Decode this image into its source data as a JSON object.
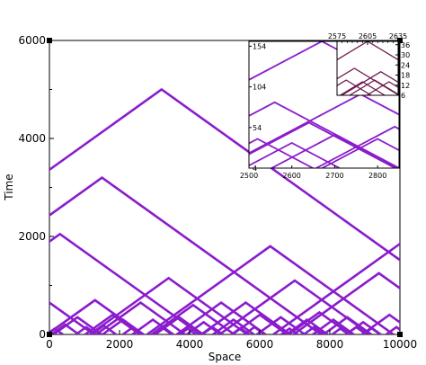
{
  "chart_data": [
    {
      "id": "main",
      "type": "line",
      "description_free": true,
      "xlabel": "Space",
      "ylabel": "Time",
      "xlim": [
        0,
        10000
      ],
      "ylim": [
        0,
        6000
      ],
      "x_ticks": [
        0,
        2000,
        4000,
        6000,
        8000,
        10000
      ],
      "y_ticks": [
        0,
        2000,
        4000,
        6000
      ],
      "x_tick_labels": [
        "0",
        "2000",
        "4000",
        "6000",
        "8000",
        "10000"
      ],
      "y_tick_labels": [
        "0",
        "2000",
        "4000",
        "6000"
      ],
      "color": "#8a1ccc",
      "major_peaks": [
        {
          "x": 3200,
          "t": 5000
        },
        {
          "x": 1500,
          "t": 3200
        },
        {
          "x": 300,
          "t": 2050
        },
        {
          "x": 6300,
          "t": 1800
        },
        {
          "x": 10000,
          "t": 1850
        },
        {
          "x": 3400,
          "t": 1150
        },
        {
          "x": 9400,
          "t": 1250
        },
        {
          "x": 7000,
          "t": 1100
        },
        {
          "x": 0,
          "t": 650
        },
        {
          "x": 1300,
          "t": 700
        },
        {
          "x": 2600,
          "t": 650
        },
        {
          "x": 4100,
          "t": 600
        },
        {
          "x": 4900,
          "t": 650
        },
        {
          "x": 5600,
          "t": 650
        },
        {
          "x": 7700,
          "t": 450
        }
      ],
      "minor_peaks": [
        {
          "x": 450,
          "t": 200
        },
        {
          "x": 800,
          "t": 350
        },
        {
          "x": 1800,
          "t": 400
        },
        {
          "x": 2100,
          "t": 300
        },
        {
          "x": 2950,
          "t": 300
        },
        {
          "x": 3700,
          "t": 350
        },
        {
          "x": 4400,
          "t": 250
        },
        {
          "x": 5250,
          "t": 300
        },
        {
          "x": 6000,
          "t": 400
        },
        {
          "x": 6600,
          "t": 350
        },
        {
          "x": 7350,
          "t": 300
        },
        {
          "x": 8100,
          "t": 300
        },
        {
          "x": 8500,
          "t": 350
        },
        {
          "x": 8950,
          "t": 250
        },
        {
          "x": 9700,
          "t": 400
        },
        {
          "x": 150,
          "t": 120
        },
        {
          "x": 1050,
          "t": 150
        },
        {
          "x": 1550,
          "t": 180
        },
        {
          "x": 2350,
          "t": 130
        },
        {
          "x": 3200,
          "t": 150
        },
        {
          "x": 3950,
          "t": 120
        },
        {
          "x": 4650,
          "t": 150
        },
        {
          "x": 5450,
          "t": 130
        },
        {
          "x": 5850,
          "t": 150
        },
        {
          "x": 6850,
          "t": 120
        },
        {
          "x": 7550,
          "t": 150
        },
        {
          "x": 8300,
          "t": 120
        },
        {
          "x": 8750,
          "t": 150
        },
        {
          "x": 9200,
          "t": 130
        },
        {
          "x": 9900,
          "t": 150
        }
      ]
    },
    {
      "id": "inset1",
      "type": "line",
      "xlim": [
        2500,
        2850
      ],
      "ylim": [
        4,
        160
      ],
      "x_ticks": [
        2500,
        2600,
        2700,
        2800
      ],
      "y_ticks": [
        4,
        54,
        104,
        154
      ],
      "x_tick_labels": [
        "2500",
        "2600",
        "2700",
        "2800"
      ],
      "y_tick_labels": [
        "4",
        "54",
        "104",
        "154"
      ],
      "color": "#8a1ccc",
      "major_peaks": [
        {
          "x": 2670,
          "t": 160
        },
        {
          "x": 2560,
          "t": 85
        },
        {
          "x": 2760,
          "t": 95
        },
        {
          "x": 2640,
          "t": 60
        },
        {
          "x": 2840,
          "t": 55
        },
        {
          "x": 2520,
          "t": 40
        },
        {
          "x": 2700,
          "t": 45
        },
        {
          "x": 2600,
          "t": 35
        },
        {
          "x": 2800,
          "t": 40
        }
      ]
    },
    {
      "id": "inset2",
      "type": "line",
      "xlim": [
        2575,
        2635
      ],
      "ylim": [
        6,
        38
      ],
      "x_ticks": [
        2575,
        2605,
        2635
      ],
      "y_ticks": [
        6,
        12,
        18,
        24,
        30,
        36
      ],
      "x_tick_labels": [
        "2575",
        "2605",
        "2635"
      ],
      "y_tick_labels": [
        "6",
        "12",
        "18",
        "24",
        "30",
        "36"
      ],
      "color": "#6e1a50",
      "major_peaks": [
        {
          "x": 2605,
          "t": 38
        },
        {
          "x": 2592,
          "t": 22
        },
        {
          "x": 2618,
          "t": 20
        },
        {
          "x": 2584,
          "t": 15
        },
        {
          "x": 2600,
          "t": 14
        },
        {
          "x": 2612,
          "t": 15
        },
        {
          "x": 2626,
          "t": 14
        }
      ]
    }
  ]
}
